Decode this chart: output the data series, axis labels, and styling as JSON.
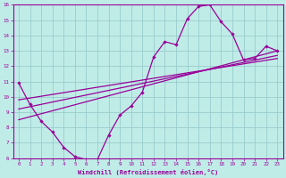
{
  "xlabel": "Windchill (Refroidissement éolien,°C)",
  "xlim": [
    -0.5,
    23.5
  ],
  "ylim": [
    6,
    16
  ],
  "xticks": [
    0,
    1,
    2,
    3,
    4,
    5,
    6,
    7,
    8,
    9,
    10,
    11,
    12,
    13,
    14,
    15,
    16,
    17,
    18,
    19,
    20,
    21,
    22,
    23
  ],
  "yticks": [
    6,
    7,
    8,
    9,
    10,
    11,
    12,
    13,
    14,
    15,
    16
  ],
  "bg_color": "#c0ece8",
  "grid_color": "#99cccc",
  "line_color": "#990099",
  "curve1_x": [
    0,
    1,
    2,
    3,
    4,
    5,
    6,
    7,
    8,
    9,
    10,
    11,
    12,
    13,
    14,
    15,
    16,
    17,
    18,
    19,
    20,
    21,
    22,
    23
  ],
  "curve1_y": [
    10.9,
    9.5,
    8.4,
    7.7,
    6.7,
    6.1,
    5.9,
    5.9,
    7.5,
    8.8,
    9.4,
    10.3,
    12.6,
    13.6,
    13.4,
    15.1,
    15.9,
    16.0,
    14.9,
    14.1,
    12.4,
    12.5,
    13.3,
    13.0
  ],
  "line1_x": [
    0,
    23
  ],
  "line1_y": [
    8.5,
    13.0
  ],
  "line2_x": [
    0,
    23
  ],
  "line2_y": [
    9.2,
    12.7
  ],
  "line3_x": [
    0,
    23
  ],
  "line3_y": [
    9.8,
    12.5
  ]
}
